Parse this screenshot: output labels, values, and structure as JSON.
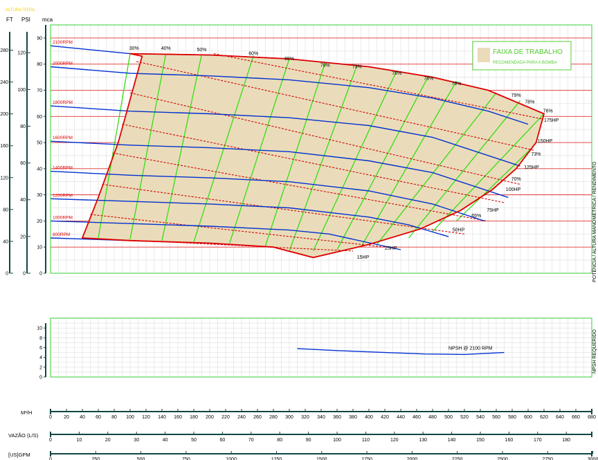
{
  "chart_data": {
    "type": "line",
    "header": {
      "title": "ALTURA TOTAL",
      "ft": "FT",
      "psi": "PSI",
      "mca": "mca"
    },
    "right_labels": {
      "main": "POTÊNCIA / ALTURA MANOMÉTRICA / RENDIMENTO",
      "npsh": "NPSH REQUERIDO"
    },
    "colors": {
      "accent": "#f0d000",
      "speed_curves": "#0030d0",
      "power_curves": "#d00000",
      "efficiency_lines": "#33dd11",
      "envelope": "#e00000",
      "work_area": "#eadcba",
      "grid": "#dddddd",
      "frame": "#33cc33",
      "green_label": "#55cc33"
    },
    "main_ylim": [
      0,
      95
    ],
    "xlim_m3h": [
      0,
      680
    ],
    "mca_ticks": [
      0,
      10,
      20,
      30,
      40,
      50,
      60,
      70,
      80,
      90
    ],
    "ft_ticks": [
      {
        "label": "0",
        "mca": 0
      },
      {
        "label": "40",
        "mca": 12.19
      },
      {
        "label": "80",
        "mca": 24.38
      },
      {
        "label": "120",
        "mca": 36.58
      },
      {
        "label": "160",
        "mca": 48.77
      },
      {
        "label": "200",
        "mca": 60.96
      },
      {
        "label": "240",
        "mca": 73.15
      },
      {
        "label": "280",
        "mca": 85.34
      }
    ],
    "psi_ticks": [
      {
        "label": "0",
        "mca": 0
      },
      {
        "label": "20",
        "mca": 14.06
      },
      {
        "label": "40",
        "mca": 28.12
      },
      {
        "label": "60",
        "mca": 42.18
      },
      {
        "label": "80",
        "mca": 56.24
      },
      {
        "label": "100",
        "mca": 70.3
      },
      {
        "label": "120",
        "mca": 84.36
      }
    ],
    "speed_curves": [
      {
        "label": "2100RPM",
        "q_end": 620,
        "points": [
          [
            0,
            87
          ],
          [
            100,
            84
          ],
          [
            200,
            83.5
          ],
          [
            300,
            82
          ],
          [
            400,
            79
          ],
          [
            480,
            75
          ],
          [
            550,
            70
          ],
          [
            620,
            61
          ]
        ]
      },
      {
        "label": "2000RPM",
        "q_end": 600,
        "points": [
          [
            0,
            79
          ],
          [
            100,
            76.5
          ],
          [
            200,
            75.5
          ],
          [
            300,
            74
          ],
          [
            400,
            71
          ],
          [
            480,
            67
          ],
          [
            550,
            62
          ],
          [
            600,
            57
          ]
        ]
      },
      {
        "label": "1800RPM",
        "q_end": 590,
        "points": [
          [
            0,
            64
          ],
          [
            100,
            62
          ],
          [
            200,
            61
          ],
          [
            300,
            59.5
          ],
          [
            400,
            56.5
          ],
          [
            480,
            52
          ],
          [
            590,
            41
          ]
        ]
      },
      {
        "label": "1600RPM",
        "q_end": 575,
        "points": [
          [
            0,
            50.5
          ],
          [
            100,
            49
          ],
          [
            200,
            48
          ],
          [
            300,
            46.5
          ],
          [
            400,
            43
          ],
          [
            480,
            38.5
          ],
          [
            575,
            29
          ]
        ]
      },
      {
        "label": "1400RPM",
        "q_end": 545,
        "points": [
          [
            0,
            39
          ],
          [
            100,
            37.5
          ],
          [
            200,
            36.5
          ],
          [
            300,
            35
          ],
          [
            400,
            31.5
          ],
          [
            480,
            26.5
          ],
          [
            545,
            20
          ]
        ]
      },
      {
        "label": "1200RPM",
        "q_end": 500,
        "points": [
          [
            0,
            28.5
          ],
          [
            100,
            27.5
          ],
          [
            200,
            26.5
          ],
          [
            300,
            25
          ],
          [
            400,
            21.5
          ],
          [
            450,
            18.5
          ],
          [
            500,
            14
          ]
        ]
      },
      {
        "label": "1000RPM",
        "q_end": 440,
        "points": [
          [
            0,
            20
          ],
          [
            100,
            19
          ],
          [
            200,
            18
          ],
          [
            300,
            16.5
          ],
          [
            350,
            15
          ],
          [
            440,
            9
          ]
        ]
      },
      {
        "label": "800RPM",
        "q_end": 330,
        "points": [
          [
            0,
            13.5
          ],
          [
            100,
            12.5
          ],
          [
            200,
            11.5
          ],
          [
            280,
            10
          ],
          [
            330,
            6
          ]
        ]
      }
    ],
    "envelope": [
      [
        40,
        13.5
      ],
      [
        60,
        29
      ],
      [
        85,
        50
      ],
      [
        115,
        83
      ],
      [
        100,
        84
      ],
      [
        200,
        83.5
      ],
      [
        300,
        82
      ],
      [
        400,
        79
      ],
      [
        480,
        75
      ],
      [
        550,
        70
      ],
      [
        620,
        61
      ],
      [
        610,
        50
      ],
      [
        585,
        40
      ],
      [
        555,
        32
      ],
      [
        515,
        24
      ],
      [
        465,
        17
      ],
      [
        400,
        11
      ],
      [
        330,
        6
      ],
      [
        280,
        10
      ],
      [
        200,
        11.5
      ],
      [
        100,
        12.5
      ],
      [
        40,
        13.5
      ]
    ],
    "power_lines": [
      {
        "label": "15HP",
        "from": [
          40,
          13.5
        ],
        "to": [
          380,
          8.5
        ],
        "label_at": [
          385,
          5.5
        ]
      },
      {
        "label": "25HP",
        "from": [
          50,
          22.5
        ],
        "to": [
          420,
          10
        ],
        "label_at": [
          420,
          9
        ]
      },
      {
        "label": "50HP",
        "from": [
          65,
          34
        ],
        "to": [
          520,
          15
        ],
        "label_at": [
          505,
          16
        ]
      },
      {
        "label": "75HP",
        "from": [
          78,
          46
        ],
        "to": [
          548,
          20
        ],
        "label_at": [
          548,
          23.5
        ]
      },
      {
        "label": "100HP",
        "from": [
          90,
          57
        ],
        "to": [
          570,
          27
        ],
        "label_at": [
          572,
          31.5
        ]
      },
      {
        "label": "125HP",
        "from": [
          100,
          69
        ],
        "to": [
          590,
          34
        ],
        "label_at": [
          595,
          40
        ]
      },
      {
        "label": "150HP",
        "from": [
          108,
          81
        ],
        "to": [
          608,
          47
        ],
        "label_at": [
          612,
          50
        ]
      },
      {
        "label": "175HP",
        "from": [
          205,
          84
        ],
        "to": [
          618,
          59
        ],
        "label_at": [
          620,
          58
        ]
      }
    ],
    "efficiency_lines": [
      {
        "label": "30%",
        "q_top": 100,
        "top_head": 84,
        "q_bot": 60,
        "bot_head": 13.5
      },
      {
        "label": "40%",
        "q_top": 145,
        "top_head": 84,
        "q_bot": 100,
        "bot_head": 13
      },
      {
        "label": "50%",
        "q_top": 190,
        "top_head": 83.8,
        "q_bot": 140,
        "bot_head": 12.5
      },
      {
        "label": "60%",
        "q_top": 255,
        "top_head": 83.2,
        "q_bot": 180,
        "bot_head": 12
      },
      {
        "label": "65%",
        "q_top": 300,
        "top_head": 82,
        "q_bot": 225,
        "bot_head": 11.5
      },
      {
        "label": "70%",
        "q_top": 345,
        "top_head": 80.5,
        "q_bot": 270,
        "bot_head": 10.5
      },
      {
        "label": "73%",
        "q_top": 385,
        "top_head": 79.5,
        "q_bot": 300,
        "bot_head": 8.5
      },
      {
        "label": "76%",
        "q_top": 435,
        "top_head": 77.5,
        "q_bot": 330,
        "bot_head": 8.5
      },
      {
        "label": "78%",
        "q_top": 475,
        "top_head": 75.5,
        "q_bot": 360,
        "bot_head": 9
      },
      {
        "label": "79%",
        "q_top": 510,
        "top_head": 73.5,
        "q_bot": 390,
        "bot_head": 10
      },
      {
        "label": "79%",
        "q_top": 560,
        "top_head": 69,
        "q_bot": 410,
        "bot_head": 11
      },
      {
        "label": "78%",
        "q_top": 590,
        "top_head": 66,
        "q_bot": 450,
        "bot_head": 13.5
      },
      {
        "label": "76%",
        "q_top": 620,
        "top_head": 61,
        "q_bot": 480,
        "bot_head": 16
      },
      {
        "label": "73%",
        "q_top": 605,
        "top_head": 48,
        "q_bot": 510,
        "bot_head": 20
      }
    ],
    "efficiency_labels": [
      {
        "label": "30%",
        "q": 105,
        "h": 85.5
      },
      {
        "label": "40%",
        "q": 145,
        "h": 85.5
      },
      {
        "label": "50%",
        "q": 190,
        "h": 85
      },
      {
        "label": "60%",
        "q": 255,
        "h": 83.5
      },
      {
        "label": "65%",
        "q": 300,
        "h": 81.5
      },
      {
        "label": "70%",
        "q": 345,
        "h": 79
      },
      {
        "label": "73%",
        "q": 385,
        "h": 78.5
      },
      {
        "label": "76%",
        "q": 435,
        "h": 76
      },
      {
        "label": "78%",
        "q": 475,
        "h": 74
      },
      {
        "label": "79%",
        "q": 510,
        "h": 72
      },
      {
        "label": "79%",
        "q": 585,
        "h": 67.5
      },
      {
        "label": "78%",
        "q": 602,
        "h": 65
      },
      {
        "label": "76%",
        "q": 625,
        "h": 61.5
      },
      {
        "label": "73%",
        "q": 610,
        "h": 45
      },
      {
        "label": "70%",
        "q": 585,
        "h": 35.5
      },
      {
        "label": "65%",
        "q": 535,
        "h": 21.5
      }
    ],
    "legend": {
      "title": "FAIXA DE TRABALHO",
      "subtitle": "RECOMENDADA PARA A BOMBA",
      "position": "top-right"
    },
    "npsh": {
      "ylim": [
        0,
        12
      ],
      "ticks": [
        0,
        2,
        4,
        6,
        8,
        10
      ],
      "label": "NPSH @ 2100 RPM",
      "points": [
        [
          310,
          5.8
        ],
        [
          360,
          5.4
        ],
        [
          420,
          5
        ],
        [
          470,
          4.7
        ],
        [
          520,
          4.6
        ],
        [
          570,
          5
        ]
      ]
    },
    "axes": {
      "m3h": {
        "label": "M³/H",
        "ticks": [
          0,
          20,
          40,
          60,
          80,
          100,
          120,
          140,
          160,
          180,
          200,
          220,
          240,
          260,
          280,
          300,
          320,
          340,
          360,
          380,
          400,
          420,
          440,
          460,
          480,
          500,
          520,
          540,
          560,
          580,
          600,
          620,
          640,
          660,
          680
        ]
      },
      "ls": {
        "label": "VAZÃO (L/S)",
        "ticks": [
          0,
          10,
          20,
          30,
          40,
          50,
          60,
          70,
          80,
          90,
          100,
          110,
          120,
          130,
          140,
          150,
          160,
          170,
          180
        ]
      },
      "gpm": {
        "label": "[US]GPM",
        "ticks": [
          0,
          250,
          500,
          750,
          1000,
          1250,
          1500,
          1750,
          2000,
          2250,
          2500,
          2750,
          3000
        ]
      }
    }
  }
}
